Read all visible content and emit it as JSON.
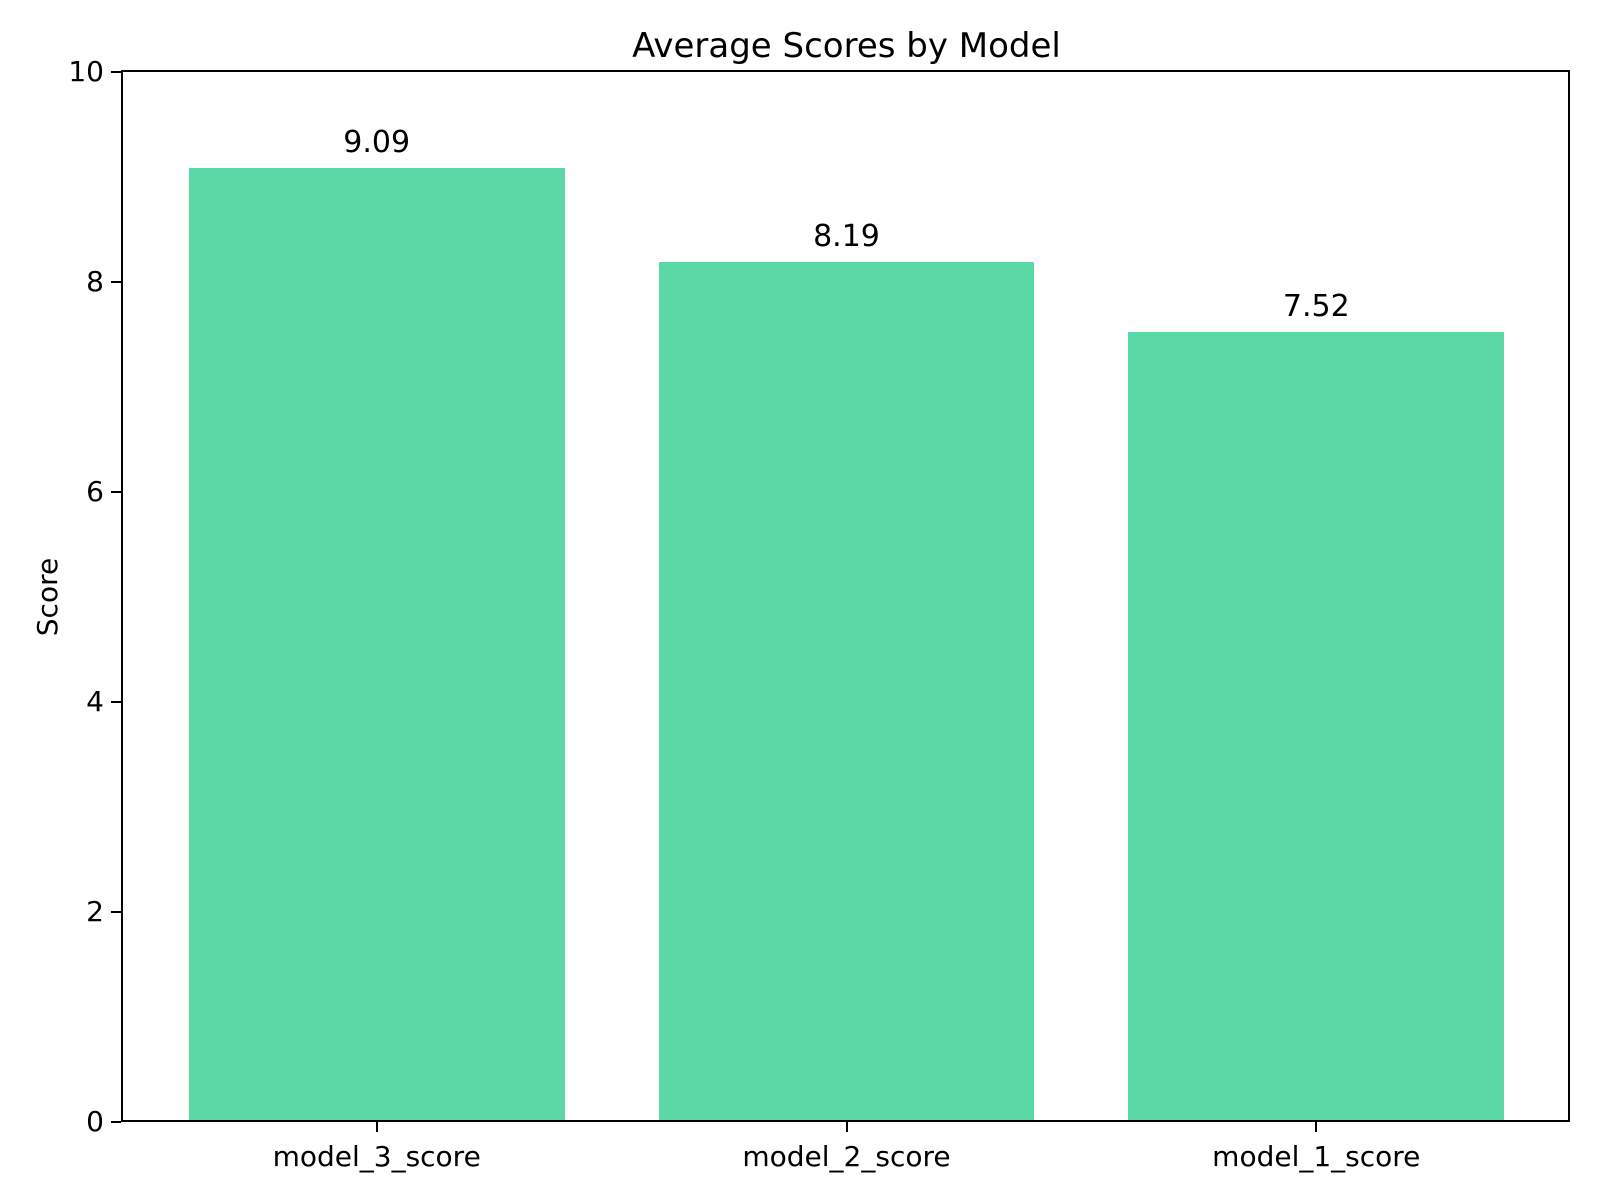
{
  "chart_data": {
    "type": "bar",
    "title": "Average Scores by Model",
    "xlabel": "",
    "ylabel": "Score",
    "categories": [
      "model_3_score",
      "model_2_score",
      "model_1_score"
    ],
    "values": [
      9.09,
      8.19,
      7.52
    ],
    "value_labels": [
      "9.09",
      "8.19",
      "7.52"
    ],
    "ylim": [
      0,
      10
    ],
    "yticks": [
      "0",
      "2",
      "4",
      "6",
      "8",
      "10"
    ],
    "ytick_values": [
      0,
      2,
      4,
      6,
      8,
      10
    ],
    "grid": false,
    "legend_position": "none",
    "bar_color": "#5ad8a6",
    "axis_color": "#000000",
    "text_color": "#000000",
    "background_color": "#ffffff"
  }
}
